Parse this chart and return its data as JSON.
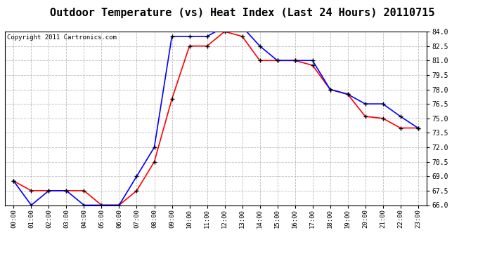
{
  "title": "Outdoor Temperature (vs) Heat Index (Last 24 Hours) 20110715",
  "copyright": "Copyright 2011 Cartronics.com",
  "x_labels": [
    "00:00",
    "01:00",
    "02:00",
    "03:00",
    "04:00",
    "05:00",
    "06:00",
    "07:00",
    "08:00",
    "09:00",
    "10:00",
    "11:00",
    "12:00",
    "13:00",
    "14:00",
    "15:00",
    "16:00",
    "17:00",
    "18:00",
    "19:00",
    "20:00",
    "21:00",
    "22:00",
    "23:00"
  ],
  "temp_data": [
    68.5,
    67.5,
    67.5,
    67.5,
    67.5,
    66.0,
    66.0,
    67.5,
    70.5,
    77.0,
    82.5,
    82.5,
    84.0,
    83.5,
    81.0,
    81.0,
    81.0,
    80.5,
    78.0,
    77.5,
    75.2,
    75.0,
    74.0,
    74.0
  ],
  "heat_data": [
    68.5,
    66.0,
    67.5,
    67.5,
    66.0,
    66.0,
    66.0,
    69.0,
    72.0,
    83.5,
    83.5,
    83.5,
    84.5,
    84.5,
    82.5,
    81.0,
    81.0,
    81.0,
    78.0,
    77.5,
    76.5,
    76.5,
    75.2,
    74.0
  ],
  "temp_color": "#ff0000",
  "heat_color": "#0000ff",
  "bg_color": "#ffffff",
  "plot_bg_color": "#ffffff",
  "grid_color": "#bbbbbb",
  "ylim": [
    66.0,
    84.0
  ],
  "yticks": [
    66.0,
    67.5,
    69.0,
    70.5,
    72.0,
    73.5,
    75.0,
    76.5,
    78.0,
    79.5,
    81.0,
    82.5,
    84.0
  ],
  "title_fontsize": 11,
  "copyright_fontsize": 6.5,
  "marker": "+",
  "marker_size": 5,
  "marker_color": "#000000",
  "line_width": 1.2
}
